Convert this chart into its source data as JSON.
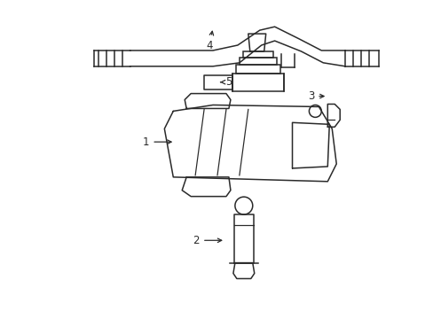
{
  "background_color": "#ffffff",
  "line_color": "#2a2a2a",
  "figsize": [
    4.89,
    3.6
  ],
  "dpi": 100,
  "label_fontsize": 8.5
}
